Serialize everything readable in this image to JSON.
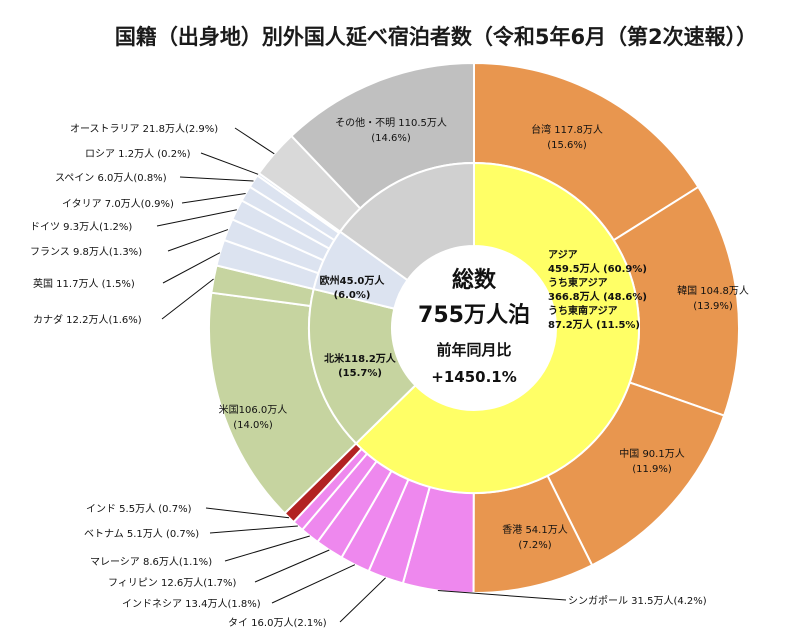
{
  "chart_data": {
    "type": "pie",
    "title": "国籍（出身地）別外国人延べ宿泊者数（令和5年6月（第2次速報））",
    "center": {
      "label": "総数",
      "total": "755万人泊",
      "yoy_label": "前年同月比",
      "yoy_value": "+1450.1%"
    },
    "inner_ring": [
      {
        "name": "アジア",
        "value": 459.5,
        "lines": [
          "アジア",
          "459.5万人 (60.9%)",
          "うち東アジア",
          "366.8万人 (48.6%)",
          "うち東南アジア",
          "87.2万人 (11.5%)"
        ],
        "color": "#ffff66"
      },
      {
        "name": "北米",
        "value": 118.2,
        "lines": [
          "北米118.2万人",
          "(15.7%)"
        ],
        "color": "#c6d4a0"
      },
      {
        "name": "欧州",
        "value": 45.0,
        "lines": [
          "欧州45.0万人",
          "(6.0%)"
        ],
        "color": "#dce3f0"
      },
      {
        "name": "その他・不明",
        "value": 110.5,
        "lines": [
          "その他・不明 110.5万人",
          "(14.6%)"
        ],
        "color": "#d0d0d0"
      }
    ],
    "outer_ring": [
      {
        "name": "台湾",
        "value": 117.8,
        "lines": [
          "台湾 117.8万人",
          "(15.6%)"
        ],
        "color": "#e8964f",
        "label_inside": true
      },
      {
        "name": "韓国",
        "value": 104.8,
        "lines": [
          "韓国 104.8万人",
          "(13.9%)"
        ],
        "color": "#e8964f",
        "label_inside": true
      },
      {
        "name": "中国",
        "value": 90.1,
        "lines": [
          "中国 90.1万人",
          "(11.9%)"
        ],
        "color": "#e8964f",
        "label_inside": true
      },
      {
        "name": "香港",
        "value": 54.1,
        "lines": [
          "香港 54.1万人",
          "(7.2%)"
        ],
        "color": "#e8964f",
        "label_inside": true
      },
      {
        "name": "シンガポール",
        "value": 31.5,
        "label": "シンガポール 31.5万人(4.2%)",
        "color": "#ee88ee"
      },
      {
        "name": "タイ",
        "value": 16.0,
        "label": "タイ 16.0万人(2.1%)",
        "color": "#ee88ee"
      },
      {
        "name": "インドネシア",
        "value": 13.4,
        "label": "インドネシア 13.4万人(1.8%)",
        "color": "#ee88ee"
      },
      {
        "name": "フィリピン",
        "value": 12.6,
        "label": "フィリピン 12.6万人(1.7%)",
        "color": "#ee88ee"
      },
      {
        "name": "マレーシア",
        "value": 8.6,
        "label": "マレーシア 8.6万人(1.1%)",
        "color": "#ee88ee"
      },
      {
        "name": "ベトナム",
        "value": 5.1,
        "label": "ベトナム 5.1万人 (0.7%)",
        "color": "#ee88ee"
      },
      {
        "name": "インド",
        "value": 5.5,
        "label": "インド 5.5万人 (0.7%)",
        "color": "#b22222"
      },
      {
        "name": "米国",
        "value": 106.0,
        "lines": [
          "米国106.0万人",
          "(14.0%)"
        ],
        "color": "#c6d4a0",
        "label_inside": true
      },
      {
        "name": "カナダ",
        "value": 12.2,
        "label": "カナダ 12.2万人(1.6%)",
        "color": "#c6d4a0"
      },
      {
        "name": "英国",
        "value": 11.7,
        "label": "英国 11.7万人 (1.5%)",
        "color": "#dce3f0"
      },
      {
        "name": "フランス",
        "value": 9.8,
        "label": "フランス 9.8万人(1.3%)",
        "color": "#dce3f0"
      },
      {
        "name": "ドイツ",
        "value": 9.3,
        "label": "ドイツ 9.3万人(1.2%)",
        "color": "#dce3f0"
      },
      {
        "name": "イタリア",
        "value": 7.0,
        "label": "イタリア 7.0万人(0.9%)",
        "color": "#dce3f0"
      },
      {
        "name": "スペイン",
        "value": 6.0,
        "label": "スペイン 6.0万人(0.8%)",
        "color": "#dce3f0"
      },
      {
        "name": "ロシア",
        "value": 1.2,
        "label": "ロシア 1.2万人 (0.2%)",
        "color": "#dce3f0"
      },
      {
        "name": "オーストラリア",
        "value": 21.8,
        "label": "オーストラリア 21.8万人(2.9%)",
        "color": "#d9d9d9"
      },
      {
        "name": "その他・不明（残り）",
        "value": 88.7,
        "color": "#c0c0c0",
        "unlabeled": true
      }
    ]
  }
}
